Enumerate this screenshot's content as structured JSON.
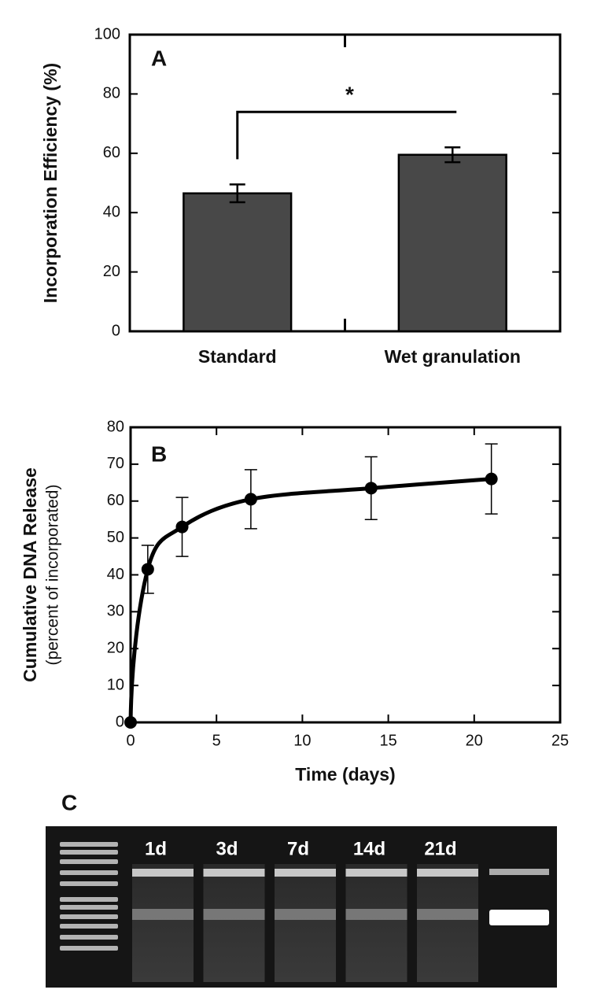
{
  "chart_data": [
    {
      "type": "bar",
      "panel": "A",
      "ylabel": "Incorporation Efficiency (%)",
      "categories": [
        "Standard",
        "Wet granulation"
      ],
      "values": [
        46.5,
        59.5
      ],
      "errors": [
        3,
        2.5
      ],
      "color": "#484848",
      "ylim": [
        0,
        100
      ],
      "yticks": [
        0,
        20,
        40,
        60,
        80,
        100
      ],
      "annotation": "*"
    },
    {
      "type": "line",
      "panel": "B",
      "ylabel": "Cumulative DNA Release",
      "ylabel2": "(percent of incorporated)",
      "xlabel": "Time (days)",
      "x": [
        0,
        1,
        3,
        7,
        14,
        21
      ],
      "values": [
        0,
        41.5,
        53,
        60.5,
        63.5,
        66
      ],
      "errors": [
        0,
        6.5,
        8,
        8,
        8.5,
        9.5
      ],
      "color": "#000000",
      "xlim": [
        0,
        25
      ],
      "xticks": [
        0,
        5,
        10,
        15,
        20,
        25
      ],
      "ylim": [
        0,
        80
      ],
      "yticks": [
        0,
        10,
        20,
        30,
        40,
        50,
        60,
        70,
        80
      ]
    }
  ],
  "gel": {
    "panel": "C",
    "lanes": [
      "1d",
      "3d",
      "7d",
      "14d",
      "21d"
    ]
  }
}
